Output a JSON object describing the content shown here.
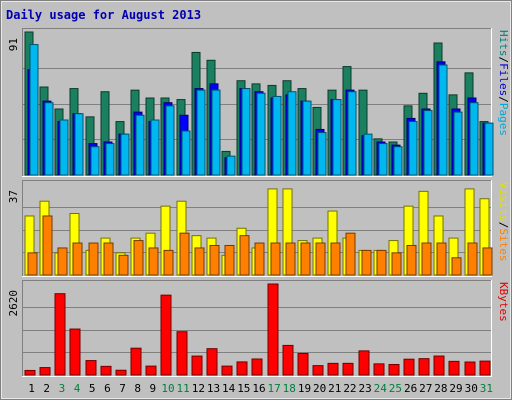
{
  "chart_data": {
    "type": "bar",
    "title": "Daily usage for August 2013",
    "categories": [
      "1",
      "2",
      "3",
      "4",
      "5",
      "6",
      "7",
      "8",
      "9",
      "10",
      "11",
      "12",
      "13",
      "14",
      "15",
      "16",
      "17",
      "18",
      "19",
      "20",
      "21",
      "22",
      "23",
      "24",
      "25",
      "26",
      "27",
      "28",
      "29",
      "30",
      "31"
    ],
    "weekend_days": [
      "3",
      "4",
      "10",
      "11",
      "17",
      "18",
      "24",
      "25",
      "31"
    ],
    "panels": [
      {
        "name": "top",
        "ymax_label": "91",
        "ylim": [
          0,
          91
        ],
        "legend": [
          "Pages",
          "Files",
          "Hits"
        ],
        "legend_colors": [
          "#00a8d8",
          "#0000d0",
          "#008080"
        ],
        "series": [
          {
            "name": "Hits",
            "color": "#1a8060",
            "values": [
              91,
              56,
              42,
              55,
              37,
              53,
              34,
              54,
              49,
              49,
              48,
              78,
              73,
              15,
              60,
              58,
              57,
              60,
              55,
              43,
              54,
              69,
              54,
              23,
              21,
              44,
              52,
              84,
              51,
              65,
              34
            ]
          },
          {
            "name": "Files",
            "color": "#0000ff",
            "values": [
              67,
              47,
              34,
              39,
              20,
              21,
              26,
              40,
              34,
              46,
              38,
              55,
              58,
              11,
              55,
              53,
              49,
              51,
              47,
              29,
              48,
              54,
              25,
              21,
              19,
              36,
              42,
              72,
              42,
              49,
              33
            ]
          },
          {
            "name": "Pages",
            "color": "#00b8f0",
            "values": [
              83,
              46,
              35,
              39,
              18,
              20,
              26,
              38,
              35,
              44,
              28,
              54,
              54,
              12,
              55,
              52,
              50,
              53,
              47,
              27,
              48,
              53,
              26,
              20,
              18,
              34,
              41,
              70,
              40,
              46,
              33
            ]
          }
        ]
      },
      {
        "name": "middle",
        "ymax_label": "37",
        "ylim": [
          0,
          37
        ],
        "legend": [
          "Sites",
          "Visits"
        ],
        "legend_colors": [
          "#ff8000",
          "#e0e000"
        ],
        "series": [
          {
            "name": "Visits",
            "color": "#ffff00",
            "values": [
              24,
              30,
              9,
              25,
              10,
              15,
              9,
              15,
              17,
              28,
              30,
              16,
              15,
              8,
              19,
              11,
              35,
              35,
              14,
              15,
              26,
              15,
              10,
              10,
              14,
              28,
              34,
              24,
              15,
              35,
              31
            ]
          },
          {
            "name": "Sites",
            "color": "#ff8000",
            "values": [
              9,
              24,
              11,
              13,
              13,
              13,
              8,
              14,
              11,
              10,
              17,
              11,
              12,
              12,
              16,
              13,
              13,
              13,
              13,
              13,
              13,
              17,
              10,
              10,
              9,
              12,
              13,
              13,
              7,
              13,
              11
            ]
          }
        ]
      },
      {
        "name": "bottom",
        "ymax_label": "2620",
        "ylim": [
          0,
          2620
        ],
        "legend": [
          "KBytes"
        ],
        "legend_colors": [
          "#e00000"
        ],
        "series": [
          {
            "name": "KBytes",
            "color": "#ff0000",
            "values": [
              131,
              214,
              2341,
              1323,
              416,
              249,
              137,
              772,
              256,
              2299,
              1247,
              545,
              758,
              256,
              377,
              461,
              2620,
              852,
              621,
              270,
              335,
              336,
              695,
              321,
              303,
              455,
              471,
              546,
              393,
              374,
              400
            ]
          }
        ]
      }
    ]
  }
}
